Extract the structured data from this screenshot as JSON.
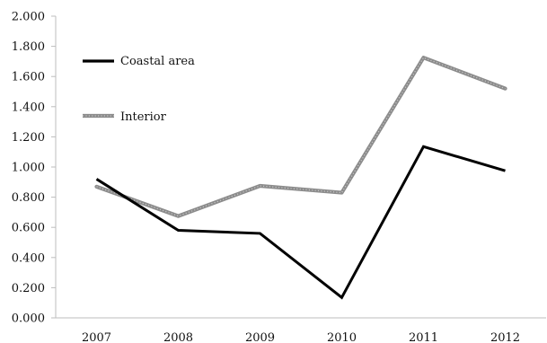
{
  "chart_data": {
    "type": "line",
    "title": "",
    "xlabel": "",
    "ylabel": "",
    "categories": [
      "2007",
      "2008",
      "2009",
      "2010",
      "2011",
      "2012"
    ],
    "ylim": [
      0,
      2
    ],
    "y_tick_step": 0.2,
    "y_tick_labels": [
      "0.000",
      "0.200",
      "0.400",
      "0.600",
      "0.800",
      "1.000",
      "1.200",
      "1.400",
      "1.600",
      "1.800",
      "2.000"
    ],
    "grid": false,
    "legend_position": "top-left",
    "series": [
      {
        "name": "Coastal area",
        "values": [
          0.92,
          0.58,
          0.56,
          0.135,
          1.135,
          0.975
        ],
        "color": "#000000",
        "style": "solid"
      },
      {
        "name": "Interior",
        "values": [
          0.87,
          0.675,
          0.875,
          0.83,
          1.725,
          1.52
        ],
        "color": "#8c8c8c",
        "style": "textured"
      }
    ]
  }
}
